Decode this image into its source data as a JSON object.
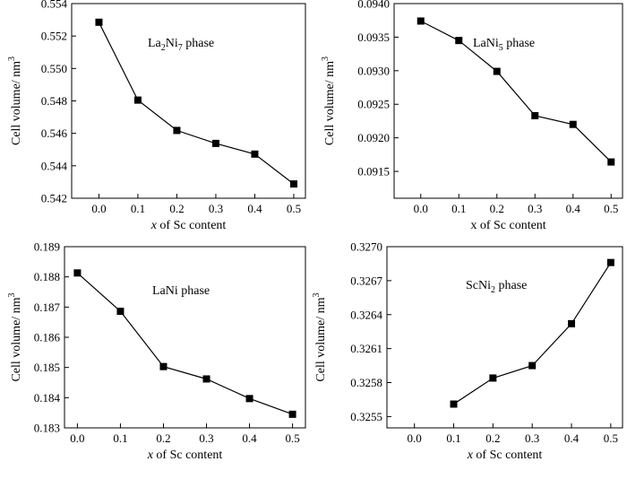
{
  "chart_data": [
    {
      "type": "line",
      "annotation": {
        "prefix": "La",
        "sub1": "2",
        "mid": "Ni",
        "sub2": "7",
        "suffix": " phase"
      },
      "xlabel": {
        "italic": "x",
        "rest": " of  Sc content"
      },
      "ylabel": {
        "main": "Cell volume/ nm",
        "sup": "3"
      },
      "xlim": [
        -0.07,
        0.53
      ],
      "ylim": [
        0.542,
        0.554
      ],
      "x_ticks": [
        0.0,
        0.1,
        0.2,
        0.3,
        0.4,
        0.5
      ],
      "x_tick_labels": [
        "0.0",
        "0.1",
        "0.2",
        "0.3",
        "0.4",
        "0.5"
      ],
      "y_ticks": [
        0.542,
        0.544,
        0.546,
        0.548,
        0.55,
        0.552,
        0.554
      ],
      "y_tick_labels": [
        "0.542",
        "0.544",
        "0.546",
        "0.548",
        "0.550",
        "0.552",
        "0.554"
      ],
      "x": [
        0.0,
        0.1,
        0.2,
        0.3,
        0.4,
        0.5
      ],
      "y": [
        0.55285,
        0.54805,
        0.54618,
        0.54538,
        0.54472,
        0.54288
      ],
      "marker": "square",
      "grid": false
    },
    {
      "type": "line",
      "annotation": {
        "prefix": "LaNi",
        "sub1": "5",
        "mid": "",
        "sub2": "",
        "suffix": " phase"
      },
      "xlabel": {
        "italic": "",
        "rest": "x of  Sc content"
      },
      "ylabel": {
        "main": "Cell volume/ nm",
        "sup": "3"
      },
      "xlim": [
        -0.07,
        0.53
      ],
      "ylim": [
        0.0911,
        0.094
      ],
      "x_ticks": [
        0.0,
        0.1,
        0.2,
        0.3,
        0.4,
        0.5
      ],
      "x_tick_labels": [
        "0.0",
        "0.1",
        "0.2",
        "0.3",
        "0.4",
        "0.5"
      ],
      "y_ticks": [
        0.0915,
        0.092,
        0.0925,
        0.093,
        0.0935,
        0.094
      ],
      "y_tick_labels": [
        "0.0915",
        "0.0920",
        "0.0925",
        "0.0930",
        "0.0935",
        "0.0940"
      ],
      "x": [
        0.0,
        0.1,
        0.2,
        0.3,
        0.4,
        0.5
      ],
      "y": [
        0.09374,
        0.09345,
        0.09299,
        0.09233,
        0.0922,
        0.09164
      ],
      "marker": "square",
      "grid": false
    },
    {
      "type": "line",
      "annotation": {
        "prefix": "LaNi phase",
        "sub1": "",
        "mid": "",
        "sub2": "",
        "suffix": ""
      },
      "xlabel": {
        "italic": "x",
        "rest": " of  Sc content"
      },
      "ylabel": {
        "main": "Cell volume/ nm",
        "sup": "3"
      },
      "xlim": [
        -0.03,
        0.53
      ],
      "ylim": [
        0.183,
        0.189
      ],
      "x_ticks": [
        0.0,
        0.1,
        0.2,
        0.3,
        0.4,
        0.5
      ],
      "x_tick_labels": [
        "0.0",
        "0.1",
        "0.2",
        "0.3",
        "0.4",
        "0.5"
      ],
      "y_ticks": [
        0.183,
        0.184,
        0.185,
        0.186,
        0.187,
        0.188,
        0.189
      ],
      "y_tick_labels": [
        "0.183",
        "0.184",
        "0.185",
        "0.186",
        "0.187",
        "0.188",
        "0.189"
      ],
      "x": [
        0.0,
        0.1,
        0.2,
        0.3,
        0.4,
        0.5
      ],
      "y": [
        0.18813,
        0.18686,
        0.18503,
        0.18462,
        0.18397,
        0.18345
      ],
      "marker": "square",
      "grid": false
    },
    {
      "type": "line",
      "annotation": {
        "prefix": "ScNi",
        "sub1": "2",
        "mid": "",
        "sub2": "",
        "suffix": " phase"
      },
      "xlabel": {
        "italic": "x",
        "rest": " of  Sc content"
      },
      "ylabel": {
        "main": "Cell volume/ nm",
        "sup": "3"
      },
      "xlim": [
        -0.07,
        0.53
      ],
      "ylim": [
        0.3254,
        0.327
      ],
      "x_ticks": [
        0.0,
        0.1,
        0.2,
        0.3,
        0.4,
        0.5
      ],
      "x_tick_labels": [
        "0.0",
        "0.1",
        "0.2",
        "0.3",
        "0.4",
        "0.5"
      ],
      "y_ticks": [
        0.3255,
        0.3258,
        0.3261,
        0.3264,
        0.3267,
        0.327
      ],
      "y_tick_labels": [
        "0.3255",
        "0.3258",
        "0.3261",
        "0.3264",
        "0.3267",
        "0.3270"
      ],
      "x": [
        0.1,
        0.2,
        0.3,
        0.4,
        0.5
      ],
      "y": [
        0.32561,
        0.32584,
        0.32595,
        0.32632,
        0.32686
      ],
      "marker": "square",
      "grid": false
    }
  ]
}
